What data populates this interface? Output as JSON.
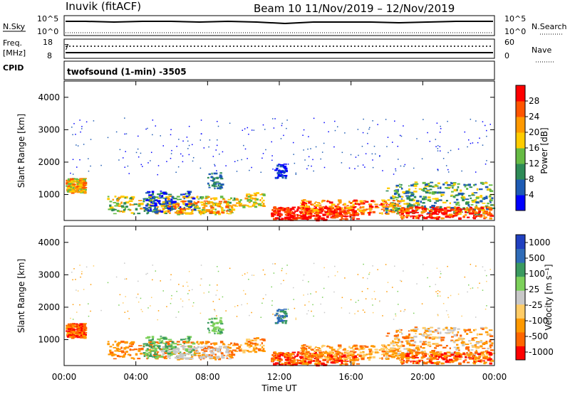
{
  "header": {
    "station": "Inuvik (fitACF)",
    "beam_date": "Beam 10  11/Nov/2019 – 12/Nov/2019"
  },
  "strip_top": {
    "left_label": "N.Sky",
    "left_ticks": [
      "10^5",
      "10^0"
    ],
    "right_label": "N.Search",
    "right_ticks": [
      "10^5",
      "10^0"
    ]
  },
  "strip_freq": {
    "left_label": "Freq.",
    "left_unit": "[MHz]",
    "left_ticks": [
      "18",
      "8"
    ],
    "right_label": "Nave",
    "right_ticks": [
      "60",
      "0"
    ],
    "cpid_label": "CPID",
    "cpid_text": "twofsound (1-min) -3505",
    "marker": "7"
  },
  "colors": {
    "power": [
      "#0000ff",
      "#1e5bb4",
      "#2e8b57",
      "#66bb44",
      "#ffcc00",
      "#ff9900",
      "#ff5500",
      "#ff0000"
    ],
    "velocity": [
      "#ff0000",
      "#ff6600",
      "#ff9900",
      "#ffcc66",
      "#c8c8c8",
      "#7cd05a",
      "#3a9a60",
      "#2f6cb8",
      "#2040c0"
    ]
  },
  "chart_data": [
    {
      "type": "heatmap",
      "ylabel": "Slant Range [km]",
      "yticks": [
        "1000",
        "2000",
        "3000",
        "4000"
      ],
      "ylim": [
        200,
        4500
      ],
      "colorbar": {
        "label": "Power [dB]",
        "ticks": [
          "4",
          "8",
          "12",
          "16",
          "20",
          "24",
          "28"
        ],
        "range": [
          0,
          32
        ]
      }
    },
    {
      "type": "heatmap",
      "ylabel": "Slant Range [km]",
      "yticks": [
        "1000",
        "2000",
        "3000",
        "4000"
      ],
      "ylim": [
        200,
        4500
      ],
      "xlabel": "Time UT",
      "xticks": [
        "00:00",
        "04:00",
        "08:00",
        "12:00",
        "16:00",
        "20:00",
        "00:00"
      ],
      "colorbar": {
        "label": "Velocity [m s⁻¹]",
        "ticks": [
          "1000",
          "500",
          "100",
          "25",
          "-25",
          "-100",
          "-500",
          "-1000"
        ]
      }
    }
  ]
}
